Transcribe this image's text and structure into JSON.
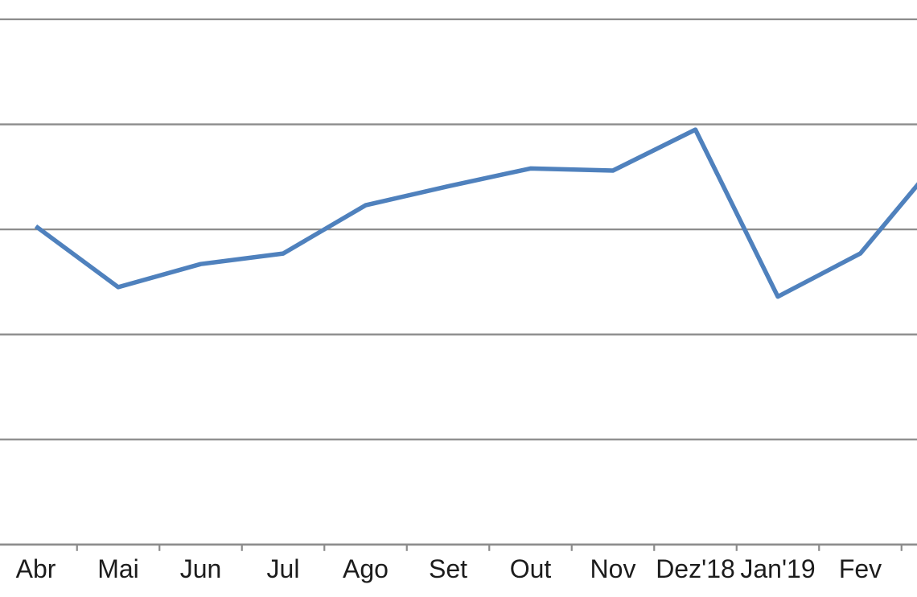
{
  "chart_data": {
    "type": "line",
    "title": "",
    "xlabel": "",
    "ylabel": "",
    "categories": [
      "Abr",
      "Mai",
      "Jun",
      "Jul",
      "Ago",
      "Set",
      "Out",
      "Nov",
      "Dez'18",
      "Jan'19",
      "Fev"
    ],
    "series": [
      {
        "name": "",
        "values": [
          3.03,
          2.45,
          2.67,
          2.77,
          3.23,
          3.41,
          3.58,
          3.56,
          3.95,
          2.36,
          2.77
        ]
      }
    ],
    "clipped_next_value": 3.71,
    "value_unit_note": "y-axis labels are cropped out of the image; values expressed in gridline units (axis = 0, one unit per gridline)",
    "ylim": [
      0,
      5.2
    ],
    "gridline_step": 1,
    "gridline_count": 5,
    "grid": true,
    "legend": false,
    "y_axis_labels_visible": false,
    "colors": {
      "line": "#4F81BD",
      "gridline": "#8C8C8C",
      "axis": "#8C8C8C",
      "tick": "#8C8C8C",
      "label_text": "#1C1C1C",
      "background": "#FFFFFF"
    }
  }
}
